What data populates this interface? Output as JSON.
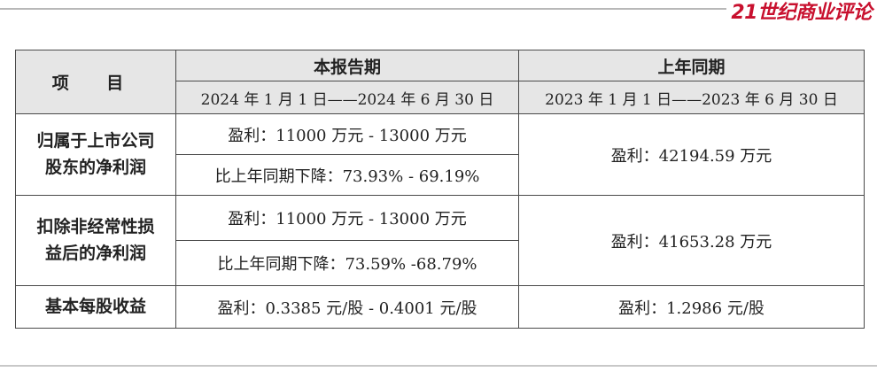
{
  "masthead": {
    "brand": "21世纪商业评论"
  },
  "table": {
    "header": {
      "item": "项 目",
      "current_period": {
        "title": "本报告期",
        "range": "2024 年 1 月 1 日——2024 年 6 月 30 日"
      },
      "prior_period": {
        "title": "上年同期",
        "range": "2023 年 1 月 1 日——2023 年 6 月 30 日"
      }
    },
    "rows": [
      {
        "label_line1": "归属于上市公司",
        "label_line2": "股东的净利润",
        "current_profit": "盈利：11000 万元 - 13000 万元",
        "current_change": "比上年同期下降：73.93% - 69.19%",
        "prior": "盈利：42194.59 万元"
      },
      {
        "label_line1": "扣除非经常性损",
        "label_line2": "益后的净利润",
        "current_profit": "盈利：11000 万元 - 13000 万元",
        "current_change": "比上年同期下降：73.59% -68.79%",
        "prior": "盈利：41653.28 万元"
      },
      {
        "label": "基本每股收益",
        "current": "盈利：0.3385 元/股 - 0.4001 元/股",
        "prior": "盈利：1.2986 元/股"
      }
    ]
  },
  "colors": {
    "brand": "#c8102e",
    "header_bg": "#e6e6e6",
    "border": "#4a4a4a"
  }
}
